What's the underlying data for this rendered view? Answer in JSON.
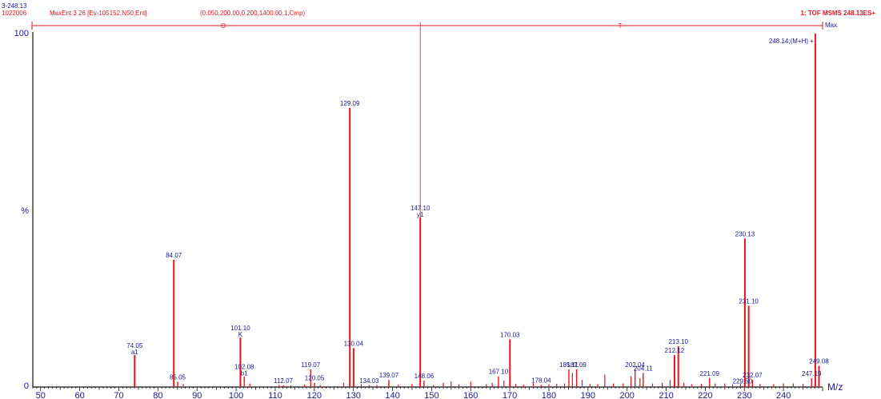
{
  "header": {
    "sample_mass": "3-248.13",
    "sample_date": "1022006",
    "scan_info": "MaxEnt 3  26 [Ev-105152,N50,Ent]",
    "processing_params": "(0.050,200.00,0.200,1400.00,1,Cmp)",
    "instrument_info": "1: TOF MSMS 248.13ES+",
    "marker_o": "O",
    "marker_t": "T"
  },
  "chart_data": {
    "type": "bar",
    "title": "",
    "xlabel": "M/z",
    "ylabel": "%",
    "xlim": [
      48,
      250
    ],
    "ylim": [
      0,
      100
    ],
    "y_axis_labels": [
      {
        "value": 100,
        "label": "100"
      },
      {
        "value": 50,
        "label": "%"
      },
      {
        "value": 0,
        "label": "0"
      }
    ],
    "x_ticks": [
      50,
      60,
      70,
      80,
      90,
      100,
      110,
      120,
      130,
      140,
      150,
      160,
      170,
      180,
      190,
      200,
      210,
      220,
      230,
      240
    ],
    "max_label": "Max",
    "marker_line_x": 147.1,
    "labeled_peaks": [
      {
        "x": 74.05,
        "y": 9,
        "label": "74.05",
        "ion": "a1"
      },
      {
        "x": 84.07,
        "y": 36,
        "label": "84.07"
      },
      {
        "x": 85.05,
        "y": 1.5,
        "label": "85.05"
      },
      {
        "x": 101.1,
        "y": 14,
        "label": "101.10",
        "ion": "K"
      },
      {
        "x": 102.08,
        "y": 3,
        "label": "102.08",
        "ion": "b1"
      },
      {
        "x": 112.07,
        "y": 0.5,
        "label": "112.07"
      },
      {
        "x": 119.07,
        "y": 5,
        "label": "119.07"
      },
      {
        "x": 120.05,
        "y": 1.2,
        "label": "120.05"
      },
      {
        "x": 129.09,
        "y": 79,
        "label": "129.09"
      },
      {
        "x": 130.04,
        "y": 11,
        "label": "130.04"
      },
      {
        "x": 134.03,
        "y": 0.5,
        "label": "134.03"
      },
      {
        "x": 139.07,
        "y": 2,
        "label": "139.07"
      },
      {
        "x": 147.1,
        "y": 48,
        "label": "147.10",
        "ion": "y1"
      },
      {
        "x": 148.06,
        "y": 1.8,
        "label": "148.06"
      },
      {
        "x": 167.1,
        "y": 3,
        "label": "167.10"
      },
      {
        "x": 170.03,
        "y": 13.5,
        "label": "170.03"
      },
      {
        "x": 178.04,
        "y": 0.6,
        "label": "178.04"
      },
      {
        "x": 185.11,
        "y": 5,
        "label": "185.11"
      },
      {
        "x": 187.09,
        "y": 5,
        "label": "187.09"
      },
      {
        "x": 202.04,
        "y": 5,
        "label": "202.04"
      },
      {
        "x": 204.11,
        "y": 4,
        "label": "204.11"
      },
      {
        "x": 212.12,
        "y": 9,
        "label": "212.12"
      },
      {
        "x": 213.1,
        "y": 11.5,
        "label": "213.10"
      },
      {
        "x": 221.09,
        "y": 2.5,
        "label": "221.09"
      },
      {
        "x": 229.5,
        "y": 0.3,
        "label": "229.50"
      },
      {
        "x": 230.13,
        "y": 42,
        "label": "230.13"
      },
      {
        "x": 231.1,
        "y": 23,
        "label": "231.10"
      },
      {
        "x": 232.07,
        "y": 2,
        "label": "232.07"
      },
      {
        "x": 247.19,
        "y": 2.5,
        "label": "247.19"
      },
      {
        "x": 248.14,
        "y": 100,
        "label": "248.14;(M+H) +"
      },
      {
        "x": 249.08,
        "y": 6,
        "label": "249.08"
      }
    ],
    "minor_peaks": [
      {
        "x": 86.5,
        "y": 0.8
      },
      {
        "x": 103.5,
        "y": 1.0
      },
      {
        "x": 111.0,
        "y": 0.6
      },
      {
        "x": 114.0,
        "y": 0.5
      },
      {
        "x": 117.5,
        "y": 0.7
      },
      {
        "x": 121.5,
        "y": 0.6
      },
      {
        "x": 127.5,
        "y": 1.2
      },
      {
        "x": 132.0,
        "y": 0.8
      },
      {
        "x": 136.0,
        "y": 0.6
      },
      {
        "x": 141.5,
        "y": 0.7
      },
      {
        "x": 145.0,
        "y": 0.9
      },
      {
        "x": 150.5,
        "y": 0.6
      },
      {
        "x": 153.0,
        "y": 1.2
      },
      {
        "x": 155.0,
        "y": 1.6
      },
      {
        "x": 157.0,
        "y": 0.8
      },
      {
        "x": 160.0,
        "y": 1.5
      },
      {
        "x": 164.0,
        "y": 0.8
      },
      {
        "x": 165.5,
        "y": 1.2
      },
      {
        "x": 168.5,
        "y": 1.8
      },
      {
        "x": 171.5,
        "y": 0.9
      },
      {
        "x": 173.5,
        "y": 0.7
      },
      {
        "x": 176.0,
        "y": 1.1
      },
      {
        "x": 180.0,
        "y": 0.8
      },
      {
        "x": 182.0,
        "y": 0.9
      },
      {
        "x": 184.0,
        "y": 1.0
      },
      {
        "x": 186.0,
        "y": 4.0
      },
      {
        "x": 188.5,
        "y": 2.0
      },
      {
        "x": 190.5,
        "y": 0.9
      },
      {
        "x": 192.5,
        "y": 0.8
      },
      {
        "x": 194.3,
        "y": 3.5
      },
      {
        "x": 196.5,
        "y": 1.0
      },
      {
        "x": 199.0,
        "y": 1.0
      },
      {
        "x": 201.0,
        "y": 3.0
      },
      {
        "x": 203.3,
        "y": 2.5
      },
      {
        "x": 206.5,
        "y": 1.0
      },
      {
        "x": 209.0,
        "y": 1.2
      },
      {
        "x": 211.0,
        "y": 2.0
      },
      {
        "x": 214.5,
        "y": 1.2
      },
      {
        "x": 216.5,
        "y": 0.8
      },
      {
        "x": 219.0,
        "y": 0.9
      },
      {
        "x": 222.5,
        "y": 1.0
      },
      {
        "x": 225.0,
        "y": 1.0
      },
      {
        "x": 227.0,
        "y": 0.8
      },
      {
        "x": 229.0,
        "y": 1.0
      },
      {
        "x": 234.0,
        "y": 0.9
      },
      {
        "x": 237.5,
        "y": 0.8
      },
      {
        "x": 240.0,
        "y": 1.0
      },
      {
        "x": 242.5,
        "y": 1.0
      },
      {
        "x": 245.0,
        "y": 0.9
      }
    ]
  },
  "colors": {
    "axis": "#111111",
    "peaks": "#e8141c",
    "labels": "#1a1a8c",
    "header": "#e8141c"
  }
}
